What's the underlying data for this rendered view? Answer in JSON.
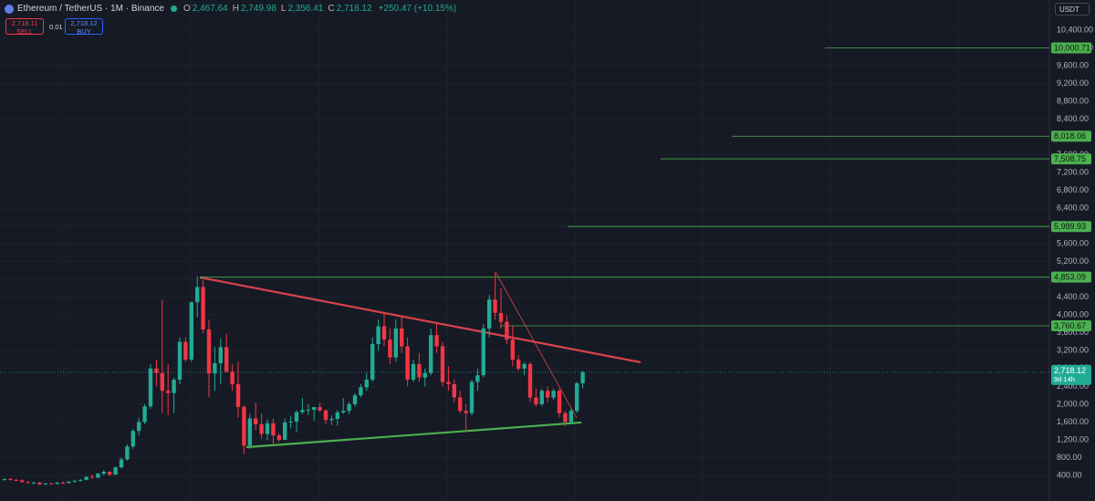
{
  "chart_data": {
    "type": "candlestick",
    "title": "Ethereum / TetherUS · 1M · Binance",
    "ohlc_legend": [
      {
        "label": "O",
        "value": "2,467.64"
      },
      {
        "label": "H",
        "value": "2,749.98"
      },
      {
        "label": "L",
        "value": "2,356.41"
      },
      {
        "label": "C",
        "value": "2,718.12"
      }
    ],
    "change": "+250.47 (+10.15%)",
    "order": {
      "sell_price": "2,718.11",
      "sell_label": "SELL",
      "quantity": "0.01",
      "buy_price": "2,718.12",
      "buy_label": "BUY"
    },
    "currency": "USDT",
    "open": [
      300,
      320,
      300,
      290,
      250,
      230,
      240,
      200,
      220,
      210,
      240,
      230,
      260,
      280,
      300,
      370,
      350,
      440,
      480,
      420,
      580,
      760,
      1050,
      1400,
      1600,
      1950,
      2800,
      2700,
      2300,
      2250,
      2550,
      3400,
      3000,
      4290,
      4630,
      3680,
      2690,
      2920,
      3280,
      2730,
      2450,
      1940,
      1070,
      1680,
      1550,
      1330,
      1570,
      1300,
      1200,
      1590,
      1610,
      1820,
      1870,
      1875,
      1935,
      1860,
      1645,
      1670,
      1815,
      1850,
      2000,
      2200,
      2380,
      2550,
      3350,
      3750,
      3450,
      3050,
      3700,
      3300,
      2550,
      2900,
      2600,
      2700,
      3550,
      3300,
      2500,
      2450,
      2150,
      1850,
      1800,
      2500,
      2650,
      3700,
      4350,
      4050,
      3850,
      3450,
      3000,
      2800,
      2900,
      2150,
      2000,
      2300,
      2150,
      2300,
      1800,
      1600,
      1850,
      2467.64
    ],
    "high": [
      330,
      340,
      320,
      310,
      270,
      260,
      250,
      230,
      240,
      250,
      260,
      270,
      300,
      320,
      380,
      420,
      460,
      520,
      500,
      600,
      800,
      1100,
      1450,
      1700,
      2000,
      2900,
      3000,
      4350,
      2900,
      2600,
      3500,
      3500,
      4300,
      4870,
      4780,
      3900,
      3280,
      3480,
      3580,
      2900,
      2960,
      1970,
      1790,
      2030,
      1790,
      1660,
      1680,
      1350,
      1680,
      1740,
      1860,
      2140,
      2000,
      1930,
      2030,
      1880,
      1750,
      1870,
      2140,
      2050,
      2250,
      2450,
      2700,
      3500,
      3900,
      4050,
      3700,
      3900,
      3950,
      3500,
      3000,
      3150,
      2800,
      3700,
      3800,
      3400,
      2850,
      2550,
      2300,
      2000,
      2550,
      2800,
      3800,
      4450,
      4950,
      4600,
      4000,
      3750,
      3100,
      2950,
      2950,
      2350,
      2350,
      2400,
      2350,
      2350,
      1850,
      1900,
      2500,
      2749.98
    ],
    "low": [
      280,
      290,
      270,
      240,
      220,
      200,
      180,
      190,
      200,
      200,
      210,
      220,
      240,
      260,
      290,
      330,
      340,
      400,
      380,
      410,
      560,
      730,
      1000,
      1300,
      1550,
      1900,
      2400,
      1800,
      1750,
      1800,
      2450,
      2950,
      2950,
      3950,
      3600,
      2160,
      2300,
      2450,
      2720,
      2300,
      1700,
      880,
      1000,
      1420,
      1220,
      1190,
      1070,
      1150,
      1190,
      1460,
      1370,
      1780,
      1760,
      1630,
      1830,
      1550,
      1530,
      1520,
      1780,
      1780,
      1950,
      2150,
      2300,
      2500,
      3200,
      3300,
      2900,
      2950,
      3150,
      2400,
      2500,
      2500,
      2400,
      2650,
      3150,
      2400,
      2300,
      2050,
      1800,
      1390,
      1750,
      2300,
      2600,
      3500,
      3900,
      3700,
      3350,
      2850,
      2750,
      2650,
      2050,
      1950,
      1950,
      2050,
      2100,
      1700,
      1500,
      1550,
      1800,
      2356.41
    ],
    "close": [
      320,
      300,
      290,
      250,
      230,
      240,
      200,
      220,
      210,
      240,
      230,
      260,
      280,
      300,
      370,
      350,
      440,
      480,
      420,
      580,
      760,
      1050,
      1400,
      1600,
      1950,
      2800,
      2700,
      2300,
      2250,
      2550,
      3400,
      3000,
      4290,
      4630,
      3680,
      2690,
      2920,
      3280,
      2730,
      2450,
      1940,
      1070,
      1680,
      1550,
      1330,
      1570,
      1300,
      1200,
      1590,
      1610,
      1820,
      1870,
      1875,
      1935,
      1860,
      1645,
      1670,
      1815,
      1850,
      2000,
      2200,
      2380,
      2550,
      3350,
      3750,
      3450,
      3050,
      3700,
      3300,
      2550,
      2900,
      2600,
      2700,
      3550,
      3300,
      2500,
      2450,
      2150,
      1850,
      1800,
      2500,
      2650,
      3700,
      4350,
      4050,
      3850,
      3450,
      3000,
      2800,
      2900,
      2150,
      2000,
      2300,
      2150,
      2300,
      1800,
      1600,
      1850,
      2467.64,
      2718.12
    ],
    "up_color": "#22ab94",
    "down_color": "#f23645",
    "ylim": [
      -174,
      11076
    ],
    "yticks": [
      {
        "value": 400,
        "label": "400.00"
      },
      {
        "value": 800,
        "label": "800.00"
      },
      {
        "value": 1200,
        "label": "1,200.00"
      },
      {
        "value": 1600,
        "label": "1,600.00"
      },
      {
        "value": 2000,
        "label": "2,000.00"
      },
      {
        "value": 2400,
        "label": "2,400.00"
      },
      {
        "value": 2800,
        "label": "2,800.00"
      },
      {
        "value": 3200,
        "label": "3,200.00"
      },
      {
        "value": 3600,
        "label": "3,600.00"
      },
      {
        "value": 4000,
        "label": "4,000.00"
      },
      {
        "value": 4400,
        "label": "4,400.00"
      },
      {
        "value": 4800,
        "label": "4,800.00"
      },
      {
        "value": 5200,
        "label": "5,200.00"
      },
      {
        "value": 5600,
        "label": "5,600.00"
      },
      {
        "value": 6000,
        "label": "6,000.00"
      },
      {
        "value": 6400,
        "label": "6,400.00"
      },
      {
        "value": 6800,
        "label": "6,800.00"
      },
      {
        "value": 7200,
        "label": "7,200.00"
      },
      {
        "value": 7600,
        "label": "7,600.00"
      },
      {
        "value": 8000,
        "label": "8,000.00"
      },
      {
        "value": 8400,
        "label": "8,400.00"
      },
      {
        "value": 8800,
        "label": "8,800.00"
      },
      {
        "value": 9200,
        "label": "9,200.00"
      },
      {
        "value": 9600,
        "label": "9,600.00"
      },
      {
        "value": 10000,
        "label": "10,000.00"
      },
      {
        "value": 10400,
        "label": "10,400.00"
      }
    ],
    "grid": true,
    "level_color": "#4caf50",
    "price_levels": [
      {
        "value": 10000.71,
        "label": "10,000.71"
      },
      {
        "value": 8018.06,
        "label": "8,018.06"
      },
      {
        "value": 7508.75,
        "label": "7,508.75"
      },
      {
        "value": 5989.93,
        "label": "5,989.93"
      },
      {
        "value": 4853.09,
        "label": "4,853.09"
      },
      {
        "value": 3760.67,
        "label": "3,760.67"
      }
    ],
    "last_price": {
      "value": 2718.12,
      "label": "2,718.12"
    },
    "countdown": "9d 14h"
  }
}
